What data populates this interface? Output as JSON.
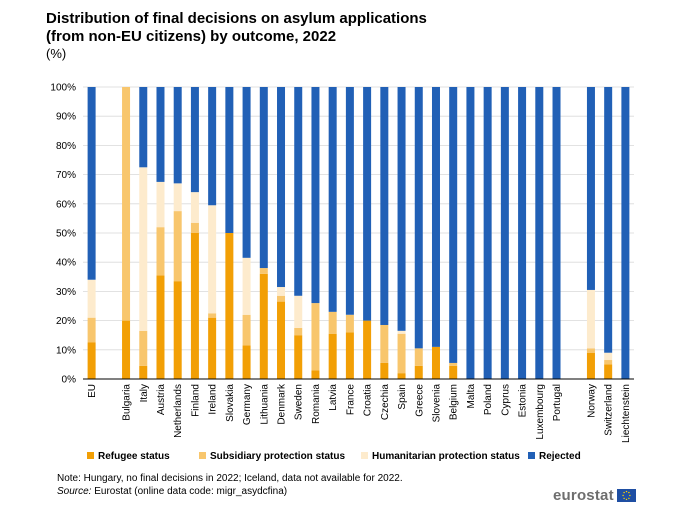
{
  "title_line1": "Distribution of final decisions on asylum applications",
  "title_line2": "(from non-EU citizens) by outcome, 2022",
  "subtitle": "(%)",
  "note": "Note: Hungary, no final decisions in 2022; Iceland, data not available for 2022.",
  "source_label": "Source:",
  "source_text": "Eurostat (online data code: migr_asydcfina)",
  "logo_text": "eurostat",
  "colors": {
    "refugee": "#f29f05",
    "subsidiary": "#f8c66d",
    "humanitarian": "#fdebcd",
    "rejected": "#2160b6",
    "grid": "#d9d9d9",
    "axis": "#000000"
  },
  "chart_data": {
    "type": "bar",
    "stacked": true,
    "title": "Distribution of final decisions on asylum applications (from non-EU citizens) by outcome, 2022",
    "ylabel": "(%)",
    "ylim": [
      0,
      100
    ],
    "yticks": [
      "0%",
      "10%",
      "20%",
      "30%",
      "40%",
      "50%",
      "60%",
      "70%",
      "80%",
      "90%",
      "100%"
    ],
    "grid": true,
    "legend_position": "bottom",
    "categories": [
      "EU",
      "",
      "Bulgaria",
      "Italy",
      "Austria",
      "Netherlands",
      "Finland",
      "Ireland",
      "Slovakia",
      "Germany",
      "Lithuania",
      "Denmark",
      "Sweden",
      "Romania",
      "Latvia",
      "France",
      "Croatia",
      "Czechia",
      "Spain",
      "Greece",
      "Slovenia",
      "Belgium",
      "Malta",
      "Poland",
      "Cyprus",
      "Estonia",
      "Luxembourg",
      "Portugal",
      "",
      "Norway",
      "Switzerland",
      "Liechtenstein"
    ],
    "series": [
      {
        "name": "Refugee status",
        "color": "#f29f05",
        "values": [
          12.5,
          null,
          20,
          4.5,
          35.5,
          33.5,
          50,
          21,
          50,
          11.5,
          36,
          26.5,
          15,
          3,
          15.5,
          16,
          20,
          5.5,
          2,
          4.5,
          11,
          4.5,
          0,
          0,
          0,
          0,
          0,
          0,
          null,
          9,
          5,
          0
        ]
      },
      {
        "name": "Subsidiary protection status",
        "color": "#f8c66d",
        "values": [
          8.5,
          null,
          80,
          12,
          16.5,
          24,
          3.5,
          1.5,
          0,
          10.5,
          2,
          2,
          2.5,
          23,
          7.5,
          6,
          0,
          13,
          13.5,
          6,
          0,
          1,
          0,
          0,
          0,
          0,
          0,
          0,
          null,
          1.5,
          1.5,
          0
        ]
      },
      {
        "name": "Humanitarian protection status",
        "color": "#fdebcd",
        "values": [
          13,
          null,
          0,
          56,
          15.5,
          9.5,
          10.5,
          37,
          0,
          19.5,
          0,
          3,
          11,
          0,
          0,
          0,
          0,
          0,
          1,
          0,
          0,
          0,
          0,
          0,
          0,
          0,
          0,
          0,
          null,
          20,
          2.5,
          0
        ]
      },
      {
        "name": "Rejected",
        "color": "#2160b6",
        "values": [
          66,
          null,
          0,
          27.5,
          32.5,
          33,
          36,
          40.5,
          50,
          58.5,
          62,
          68.5,
          71.5,
          74,
          77,
          78,
          80,
          81.5,
          83.5,
          89.5,
          89,
          94.5,
          100,
          100,
          100,
          100,
          100,
          100,
          null,
          69.5,
          91,
          100
        ]
      }
    ]
  }
}
